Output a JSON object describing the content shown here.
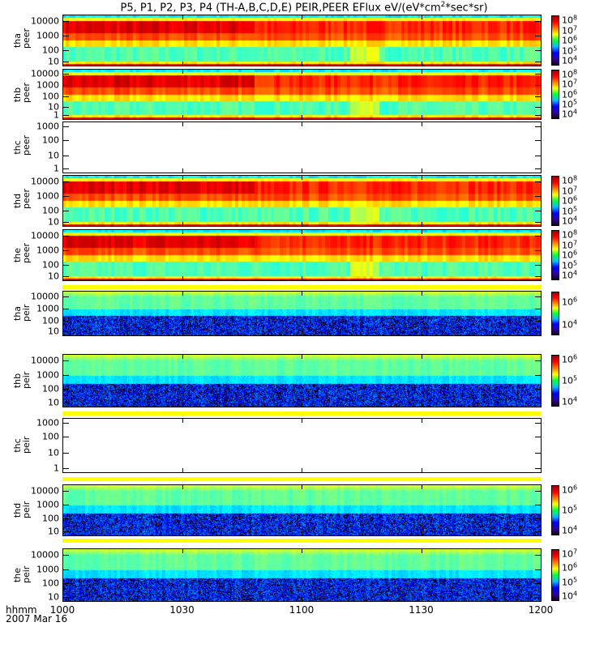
{
  "chart_data": {
    "type": "heatmap",
    "title": "P5, P1, P2, P3, P4 (TH-A,B,C,D,E) PEIR,PEER EFlux eV/(eV*cm^2*sec*sr)",
    "title_parts": {
      "pre": "P5, P1, P2, P3, P4 (TH-A,B,C,D,E) PEIR,PEER EFlux eV/(eV*cm",
      "sup": "2",
      "post": "*sec*sr)"
    },
    "xlabel_line1": "hhmm",
    "xlabel_line2": "2007 Mar 16",
    "x_ticks": [
      "1000",
      "1030",
      "1100",
      "1130",
      "1200"
    ],
    "xlim": [
      "1000",
      "1200"
    ],
    "yscale": "log",
    "zscale": "log",
    "panels": [
      {
        "probe": "tha",
        "instrument": "peer",
        "kind": "peer",
        "empty": false,
        "y_ticks": [
          "10000",
          "1000",
          "100",
          "10"
        ],
        "ylim": [
          7,
          30000
        ],
        "colorbar_ticks": [
          "8",
          "7",
          "6",
          "5",
          "4"
        ]
      },
      {
        "probe": "thb",
        "instrument": "peer",
        "kind": "peer",
        "empty": false,
        "y_ticks": [
          "10000",
          "1000",
          "100",
          "10",
          "1"
        ],
        "ylim": [
          7,
          30000
        ],
        "colorbar_ticks": [
          "8",
          "7",
          "6",
          "5",
          "4"
        ]
      },
      {
        "probe": "thc",
        "instrument": "peer",
        "kind": "peer",
        "empty": true,
        "y_ticks": [
          "1000",
          "100",
          "10",
          "1"
        ],
        "ylim": [
          0.7,
          1500
        ],
        "colorbar_ticks": []
      },
      {
        "probe": "thd",
        "instrument": "peer",
        "kind": "peer",
        "empty": false,
        "y_ticks": [
          "10000",
          "1000",
          "100",
          "10"
        ],
        "ylim": [
          7,
          30000
        ],
        "colorbar_ticks": [
          "8",
          "7",
          "6",
          "5",
          "4"
        ]
      },
      {
        "probe": "the",
        "instrument": "peer",
        "kind": "peer",
        "empty": false,
        "y_ticks": [
          "10000",
          "1000",
          "100",
          "10"
        ],
        "ylim": [
          7,
          30000
        ],
        "colorbar_ticks": [
          "8",
          "7",
          "6",
          "5",
          "4"
        ]
      },
      {
        "probe": "tha",
        "instrument": "peir",
        "kind": "peir",
        "empty": false,
        "y_ticks": [
          "10000",
          "1000",
          "100",
          "10"
        ],
        "ylim": [
          5,
          30000
        ],
        "colorbar_ticks": [
          "6",
          "4"
        ]
      },
      {
        "probe": "thb",
        "instrument": "peir",
        "kind": "peir",
        "empty": false,
        "y_ticks": [
          "10000",
          "1000",
          "100",
          "10"
        ],
        "ylim": [
          5,
          30000
        ],
        "colorbar_ticks": [
          "6",
          "5",
          "4"
        ]
      },
      {
        "probe": "thc",
        "instrument": "peir",
        "kind": "peir",
        "empty": true,
        "y_ticks": [
          "1000",
          "100",
          "10",
          "1"
        ],
        "ylim": [
          0.5,
          1500
        ],
        "colorbar_ticks": []
      },
      {
        "probe": "thd",
        "instrument": "peir",
        "kind": "peir",
        "empty": false,
        "y_ticks": [
          "10000",
          "1000",
          "100",
          "10"
        ],
        "ylim": [
          5,
          30000
        ],
        "colorbar_ticks": [
          "6",
          "5",
          "4"
        ]
      },
      {
        "probe": "the",
        "instrument": "peir",
        "kind": "peir",
        "empty": false,
        "y_ticks": [
          "10000",
          "1000",
          "100",
          "10"
        ],
        "ylim": [
          5,
          30000
        ],
        "colorbar_ticks": [
          "7",
          "6",
          "5",
          "4"
        ]
      }
    ]
  }
}
